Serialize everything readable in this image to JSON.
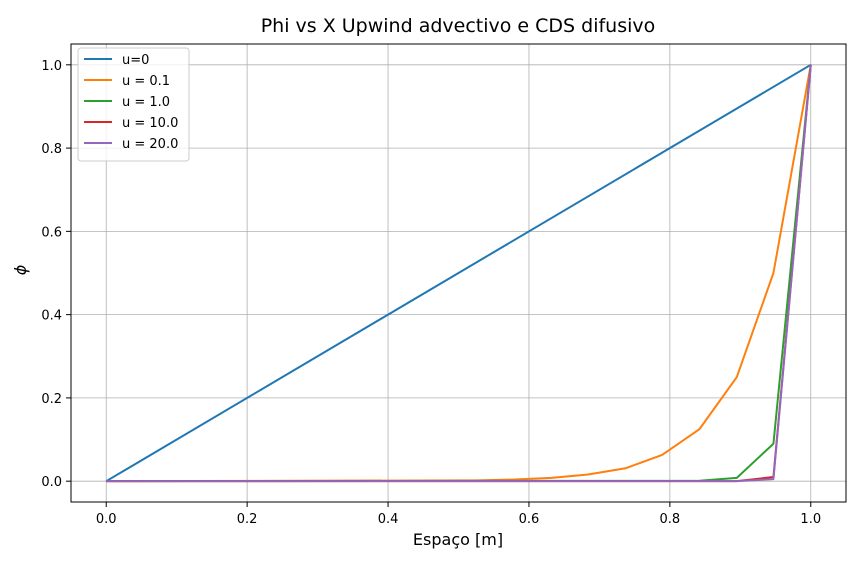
{
  "chart_data": {
    "type": "line",
    "title": "Phi vs X Upwind advectivo e CDS difusivo",
    "xlabel": "Espaço [m]",
    "ylabel": "ϕ",
    "xlim": [
      -0.05,
      1.05
    ],
    "ylim": [
      -0.05,
      1.05
    ],
    "xticks": [
      "0.0",
      "0.2",
      "0.4",
      "0.6",
      "0.8",
      "1.0"
    ],
    "yticks": [
      "0.0",
      "0.2",
      "0.4",
      "0.6",
      "0.8",
      "1.0"
    ],
    "grid": true,
    "legend": "top-left",
    "series": [
      {
        "name": "u=0",
        "color": "#1f77b4",
        "x": [
          0.0,
          1.0
        ],
        "y": [
          0.0,
          1.0
        ]
      },
      {
        "name": "u = 0.1",
        "color": "#ff7f0e",
        "x": [
          0.0,
          0.526,
          0.579,
          0.632,
          0.684,
          0.737,
          0.789,
          0.842,
          0.895,
          0.947,
          1.0
        ],
        "y": [
          0.0,
          0.002,
          0.004,
          0.008,
          0.016,
          0.031,
          0.063,
          0.125,
          0.25,
          0.5,
          1.0
        ]
      },
      {
        "name": "u = 1.0",
        "color": "#2ca02c",
        "x": [
          0.0,
          0.842,
          0.895,
          0.947,
          1.0
        ],
        "y": [
          0.0,
          0.001,
          0.008,
          0.09,
          1.0
        ]
      },
      {
        "name": "u = 10.0",
        "color": "#d62728",
        "x": [
          0.0,
          0.895,
          0.947,
          1.0
        ],
        "y": [
          0.0,
          0.0,
          0.01,
          1.0
        ]
      },
      {
        "name": "u = 20.0",
        "color": "#9467bd",
        "x": [
          0.0,
          0.895,
          0.947,
          1.0
        ],
        "y": [
          0.0,
          0.0,
          0.005,
          1.0
        ]
      }
    ]
  }
}
